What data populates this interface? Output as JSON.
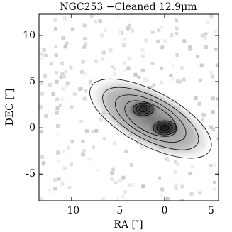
{
  "chart_data": {
    "type": "image",
    "title": "NGC253  −Cleaned 12.9μm",
    "x_label": "RA [″]",
    "y_label": "DEC [″]",
    "xlim": [
      -13.5,
      5.8
    ],
    "ylim": [
      -7.9,
      12.3
    ],
    "xticks": [
      -10,
      -5,
      0,
      5
    ],
    "yticks": [
      -5,
      0,
      5,
      10
    ]
  }
}
